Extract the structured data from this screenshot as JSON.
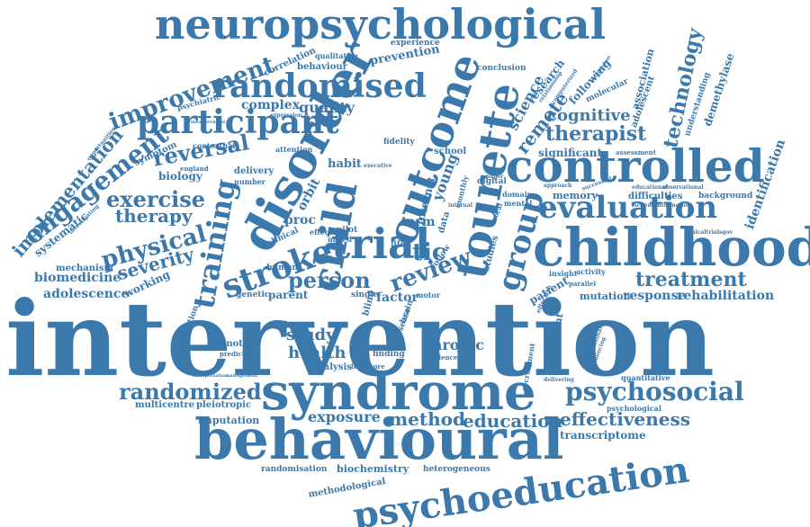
{
  "accent_color": "#3b78ab",
  "words": [
    "intervention",
    "behavioural",
    "syndrome",
    "childhood",
    "controlled",
    "neuropsychological",
    "psychoeducation",
    "disorder",
    "outcome",
    "tourette",
    "trial",
    "child",
    "randomised",
    "participant",
    "evaluation",
    "stroke",
    "training",
    "group",
    "review",
    "improvement",
    "engagement",
    "implementation",
    "psychosocial",
    "randomized",
    "physical",
    "exercise",
    "reversal",
    "therapy",
    "person",
    "treatment",
    "effectiveness",
    "education",
    "method",
    "exposure",
    "chronic",
    "health",
    "study",
    "technology",
    "cognitive",
    "therapist",
    "remote",
    "science",
    "severity",
    "biomedicine",
    "adolescence",
    "mechanism",
    "working",
    "systematic",
    "rehabilitation",
    "response",
    "mutation",
    "quality",
    "complex",
    "transcriptome",
    "multicentre",
    "pleiotropic",
    "imputation",
    "genotype",
    "predictor",
    "analysis",
    "finding",
    "biochemistry",
    "heterogeneous",
    "randomisation",
    "methodological",
    "prevention",
    "behaviour",
    "correlation",
    "experience",
    "qualitative",
    "conclusion",
    "research",
    "following",
    "association",
    "adolescent",
    "demethylase",
    "understanding",
    "identification",
    "significant",
    "assessment",
    "molecular",
    "memory",
    "difficulties",
    "background",
    "clinicaltrialsgov",
    "psychological",
    "quantitative",
    "persistent",
    "recruitment",
    "preliminary",
    "patient",
    "insight",
    "activity",
    "factor",
    "motor",
    "single",
    "parent",
    "genetic",
    "human",
    "proc",
    "orbit",
    "term",
    "pilot",
    "tic",
    "young",
    "internet",
    "data",
    "monthly",
    "digital",
    "school",
    "habit",
    "fidelity",
    "delivery",
    "number",
    "contextual",
    "attention",
    "biology",
    "england",
    "symptom",
    "psychiatric",
    "expression",
    "population",
    "clinical",
    "effect",
    "mixed",
    "blind",
    "brain",
    "disease",
    "evidence",
    "literature",
    "delivering",
    "parallel",
    "domain",
    "approach",
    "successful",
    "educational",
    "observational",
    "ischemic",
    "information",
    "interpretation",
    "management",
    "life",
    "paper",
    "executive",
    "investigating",
    "opportunities",
    "measurement",
    "studies",
    "mental",
    "computerized",
    "relationship",
    "independent",
    "follow",
    "vocal",
    "internal",
    "effective",
    "influencing"
  ]
}
